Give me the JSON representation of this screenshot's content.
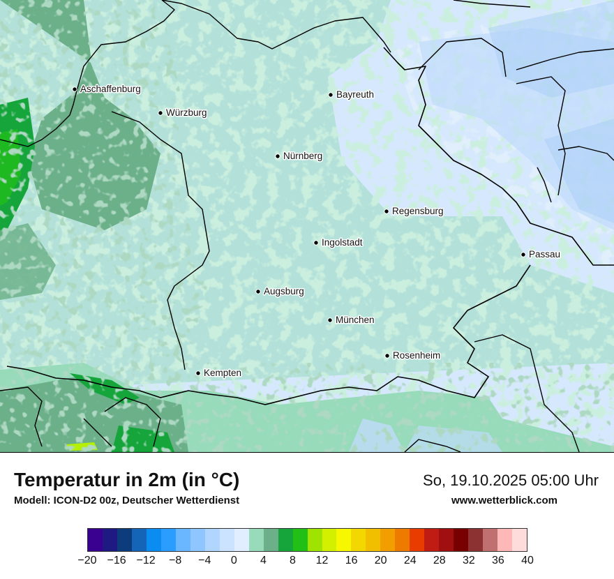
{
  "map": {
    "cities": [
      {
        "name": "Aschaffenburg"
      },
      {
        "name": "Würzburg"
      },
      {
        "name": "Bayreuth"
      },
      {
        "name": "Nürnberg"
      },
      {
        "name": "Regensburg"
      },
      {
        "name": "Ingolstadt"
      },
      {
        "name": "Passau"
      },
      {
        "name": "Augsburg"
      },
      {
        "name": "München"
      },
      {
        "name": "Rosenheim"
      },
      {
        "name": "Kempten"
      }
    ],
    "colors": {
      "cold_light": "#d6e8fe",
      "cold_medium": "#c0dcfb",
      "cool_blue": "#a6cdf7",
      "mild_green": "#98dbbb",
      "green_medium": "#6cb08a",
      "green_dark": "#15a53b",
      "green_bright": "#22c016",
      "yellow_green": "#b4f000"
    }
  },
  "header": {
    "title": "Temperatur in 2m (in °C)",
    "model": "Modell: ICON-D2 00z, Deutscher Wetterdienst",
    "datetime": "So, 19.10.2025 05:00 Uhr",
    "site": "www.wetterblick.com"
  },
  "legend": {
    "colors": [
      "#3a0090",
      "#1e1a82",
      "#0c3c7c",
      "#1465b8",
      "#0a8cf0",
      "#2a9dff",
      "#6bb7ff",
      "#8fc6ff",
      "#b0d6ff",
      "#cce3ff",
      "#e0eeff",
      "#98dbbb",
      "#6cb08a",
      "#15a53b",
      "#22c016",
      "#a0e200",
      "#d2f000",
      "#f7f800",
      "#f2d800",
      "#f2be00",
      "#f29e00",
      "#ee7a00",
      "#e83c00",
      "#c01c14",
      "#a01010",
      "#780000",
      "#8c3232",
      "#c07070",
      "#ffb8b8",
      "#ffdcdc"
    ],
    "ticks": [
      "−20",
      "−16",
      "−12",
      "−8",
      "−4",
      "0",
      "4",
      "8",
      "12",
      "16",
      "20",
      "24",
      "28",
      "32",
      "36",
      "40"
    ]
  }
}
